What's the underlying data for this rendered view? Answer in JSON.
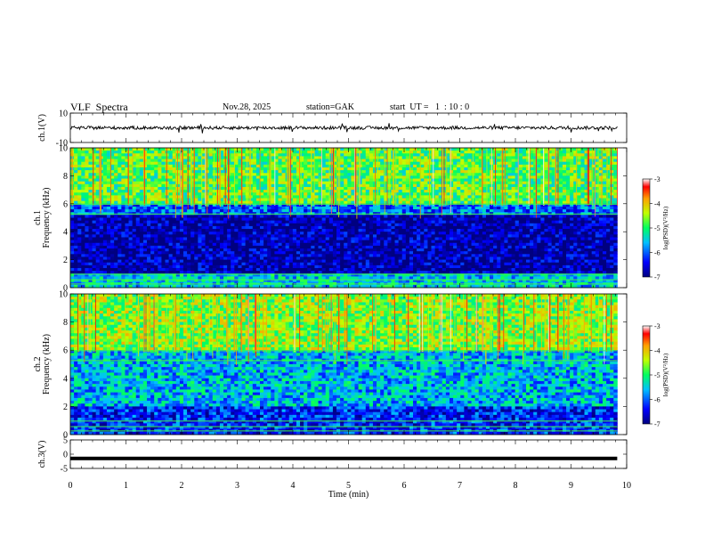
{
  "header": {
    "title": "VLF  Spectra",
    "date": "Nov.28, 2025",
    "station": "station=GAK",
    "start": "start  UT =   1  : 10 : 0"
  },
  "chart_data": [
    {
      "type": "line",
      "panel": "ch1-waveform",
      "ylabel": "ch.1(V)",
      "ylim": [
        -10,
        10
      ],
      "yticks": [
        "10",
        "-10"
      ],
      "baseline": 0,
      "x_range_min": [
        0,
        9.83
      ],
      "description_values": "noisy signal oscillating around 0 V with amplitude ~ ±2 V and occasional spikes"
    },
    {
      "type": "heatmap",
      "panel": "ch1-spectrogram",
      "ylabel": "ch.1\nFrequency  (kHz)",
      "ylim": [
        0,
        10
      ],
      "yticks": [
        0,
        2,
        4,
        6,
        8,
        10
      ],
      "x_range_min": [
        0,
        9.83
      ],
      "colorbar": {
        "label": "log(PSD)(V²/Hz)",
        "range": [
          -7,
          -3
        ],
        "ticks": [
          "-3",
          "-4",
          "-5",
          "-6",
          "-7"
        ]
      },
      "bands_khz": [
        {
          "from": 0,
          "to": 1,
          "level": -5.5
        },
        {
          "from": 1,
          "to": 5.2,
          "level": -6.8
        },
        {
          "from": 5.2,
          "to": 6,
          "level": -6.0
        },
        {
          "from": 6,
          "to": 10,
          "level": -4.8
        }
      ]
    },
    {
      "type": "heatmap",
      "panel": "ch2-spectrogram",
      "ylabel": "ch.2\nFrequency  (kHz)",
      "ylim": [
        0,
        10
      ],
      "yticks": [
        0,
        2,
        4,
        6,
        8,
        10
      ],
      "x_range_min": [
        0,
        9.83
      ],
      "colorbar": {
        "label": "log(PSD)(V²/Hz)",
        "range": [
          -7,
          -3
        ],
        "ticks": [
          "-3",
          "-4",
          "-5",
          "-6",
          "-7"
        ]
      },
      "bands_khz": [
        {
          "from": 0,
          "to": 2,
          "level": -6.3
        },
        {
          "from": 2,
          "to": 6,
          "level": -5.6
        },
        {
          "from": 6,
          "to": 10,
          "level": -4.6
        }
      ]
    },
    {
      "type": "line",
      "panel": "ch3-waveform",
      "ylabel": "ch.3(V)",
      "ylim": [
        -5,
        5
      ],
      "yticks": [
        "5",
        "0",
        "-5"
      ],
      "level": -1.5,
      "x_range_min": [
        0,
        9.83
      ]
    }
  ],
  "xaxis": {
    "label": "Time  (min)",
    "ticks": [
      "0",
      "1",
      "2",
      "3",
      "4",
      "5",
      "6",
      "7",
      "8",
      "9",
      "10"
    ],
    "range": [
      0,
      10
    ]
  }
}
